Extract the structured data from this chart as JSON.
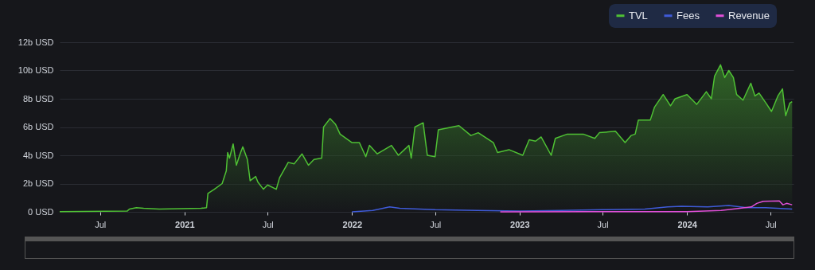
{
  "chart_data": {
    "type": "area",
    "xlim": [
      "2020-04-04",
      "2024-08-20"
    ],
    "xticks": [
      {
        "value": "2020-07-01",
        "label": "Jul"
      },
      {
        "value": "2021-01-01",
        "label": "2021"
      },
      {
        "value": "2021-07-01",
        "label": "Jul"
      },
      {
        "value": "2022-01-01",
        "label": "2022"
      },
      {
        "value": "2022-07-01",
        "label": "Jul"
      },
      {
        "value": "2023-01-01",
        "label": "2023"
      },
      {
        "value": "2023-07-01",
        "label": "Jul"
      },
      {
        "value": "2024-01-01",
        "label": "2024"
      },
      {
        "value": "2024-07-01",
        "label": "Jul"
      }
    ],
    "ylim": [
      0,
      12
    ],
    "yticks": [
      {
        "value": 0,
        "label": "0 USD"
      },
      {
        "value": 2,
        "label": "2b USD"
      },
      {
        "value": 4,
        "label": "4b USD"
      },
      {
        "value": 6,
        "label": "6b USD"
      },
      {
        "value": 8,
        "label": "8b USD"
      },
      {
        "value": 10,
        "label": "10b USD"
      },
      {
        "value": 12,
        "label": "12b USD"
      }
    ],
    "grid": "y",
    "legend": "top right",
    "marker": "none",
    "line_style": "solid",
    "series": [
      {
        "name": "TVL",
        "color": "#4fc134",
        "x": [
          "2020-04-04",
          "2020-08-29",
          "2020-09-03",
          "2020-09-18",
          "2020-10-04",
          "2020-11-07",
          "2021-02-06",
          "2021-02-18",
          "2021-02-21",
          "2021-03-07",
          "2021-03-24",
          "2021-04-02",
          "2021-04-05",
          "2021-04-09",
          "2021-04-17",
          "2021-04-24",
          "2021-05-01",
          "2021-05-08",
          "2021-05-18",
          "2021-05-24",
          "2021-06-05",
          "2021-06-10",
          "2021-06-22",
          "2021-07-01",
          "2021-07-20",
          "2021-07-27",
          "2021-08-15",
          "2021-08-28",
          "2021-09-14",
          "2021-09-28",
          "2021-10-10",
          "2021-10-27",
          "2021-10-31",
          "2021-11-14",
          "2021-11-26",
          "2021-12-06",
          "2022-01-01",
          "2022-01-17",
          "2022-01-31",
          "2022-02-08",
          "2022-02-25",
          "2022-03-28",
          "2022-04-12",
          "2022-05-05",
          "2022-05-10",
          "2022-05-18",
          "2022-06-05",
          "2022-06-14",
          "2022-07-01",
          "2022-07-08",
          "2022-08-22",
          "2022-09-17",
          "2022-10-03",
          "2022-11-05",
          "2022-11-14",
          "2022-12-09",
          "2023-01-08",
          "2023-01-22",
          "2023-02-05",
          "2023-02-17",
          "2023-03-11",
          "2023-03-20",
          "2023-04-15",
          "2023-05-20",
          "2023-06-14",
          "2023-06-24",
          "2023-07-29",
          "2023-08-19",
          "2023-09-01",
          "2023-09-10",
          "2023-09-17",
          "2023-10-13",
          "2023-10-22",
          "2023-11-10",
          "2023-11-26",
          "2023-12-06",
          "2024-01-01",
          "2024-01-22",
          "2024-02-12",
          "2024-02-23",
          "2024-03-01",
          "2024-03-14",
          "2024-03-23",
          "2024-04-01",
          "2024-04-11",
          "2024-04-18",
          "2024-05-02",
          "2024-05-19",
          "2024-05-28",
          "2024-06-06",
          "2024-06-23",
          "2024-07-03",
          "2024-07-17",
          "2024-07-27",
          "2024-08-03",
          "2024-08-12",
          "2024-08-17"
        ],
        "values": [
          0.02,
          0.05,
          0.2,
          0.3,
          0.25,
          0.2,
          0.25,
          0.3,
          1.3,
          1.6,
          2.0,
          2.9,
          4.2,
          3.8,
          4.8,
          3.3,
          4.0,
          4.6,
          3.7,
          2.2,
          2.5,
          2.1,
          1.6,
          1.9,
          1.6,
          2.4,
          3.5,
          3.4,
          4.1,
          3.3,
          3.7,
          3.8,
          6.0,
          6.6,
          6.2,
          5.5,
          4.9,
          4.9,
          3.9,
          4.7,
          4.1,
          4.7,
          4.0,
          4.7,
          3.8,
          6.0,
          6.3,
          4.0,
          3.9,
          5.8,
          6.1,
          5.4,
          5.6,
          4.9,
          4.2,
          4.4,
          4.0,
          5.1,
          5.0,
          5.3,
          4.0,
          5.2,
          5.5,
          5.5,
          5.2,
          5.6,
          5.7,
          4.9,
          5.4,
          5.5,
          6.5,
          6.5,
          7.4,
          8.3,
          7.5,
          8.0,
          8.3,
          7.6,
          8.5,
          8.0,
          9.6,
          10.4,
          9.5,
          10.0,
          9.5,
          8.3,
          7.9,
          9.1,
          8.2,
          8.4,
          7.6,
          7.1,
          8.2,
          8.7,
          6.8,
          7.7,
          7.8
        ]
      },
      {
        "name": "Fees",
        "type": "line",
        "color": "#3f5bd8",
        "x": [
          "2022-01-01",
          "2022-02-15",
          "2022-03-24",
          "2022-04-15",
          "2022-07-01",
          "2022-10-01",
          "2023-01-01",
          "2023-04-01",
          "2023-07-01",
          "2023-10-01",
          "2023-11-20",
          "2023-12-20",
          "2024-02-15",
          "2024-04-01",
          "2024-05-10",
          "2024-06-20",
          "2024-08-17"
        ],
        "values": [
          0,
          0.1,
          0.35,
          0.25,
          0.15,
          0.1,
          0.05,
          0.1,
          0.15,
          0.2,
          0.35,
          0.4,
          0.35,
          0.45,
          0.3,
          0.3,
          0.2
        ]
      },
      {
        "name": "Revenue",
        "type": "line",
        "color": "#e04fd8",
        "x": [
          "2022-11-20",
          "2023-06-01",
          "2024-01-01",
          "2024-03-15",
          "2024-04-25",
          "2024-05-20",
          "2024-06-01",
          "2024-06-15",
          "2024-07-20",
          "2024-07-28",
          "2024-08-05",
          "2024-08-17"
        ],
        "values": [
          0,
          0.02,
          0.02,
          0.1,
          0.25,
          0.35,
          0.6,
          0.75,
          0.78,
          0.5,
          0.6,
          0.5
        ]
      }
    ]
  }
}
